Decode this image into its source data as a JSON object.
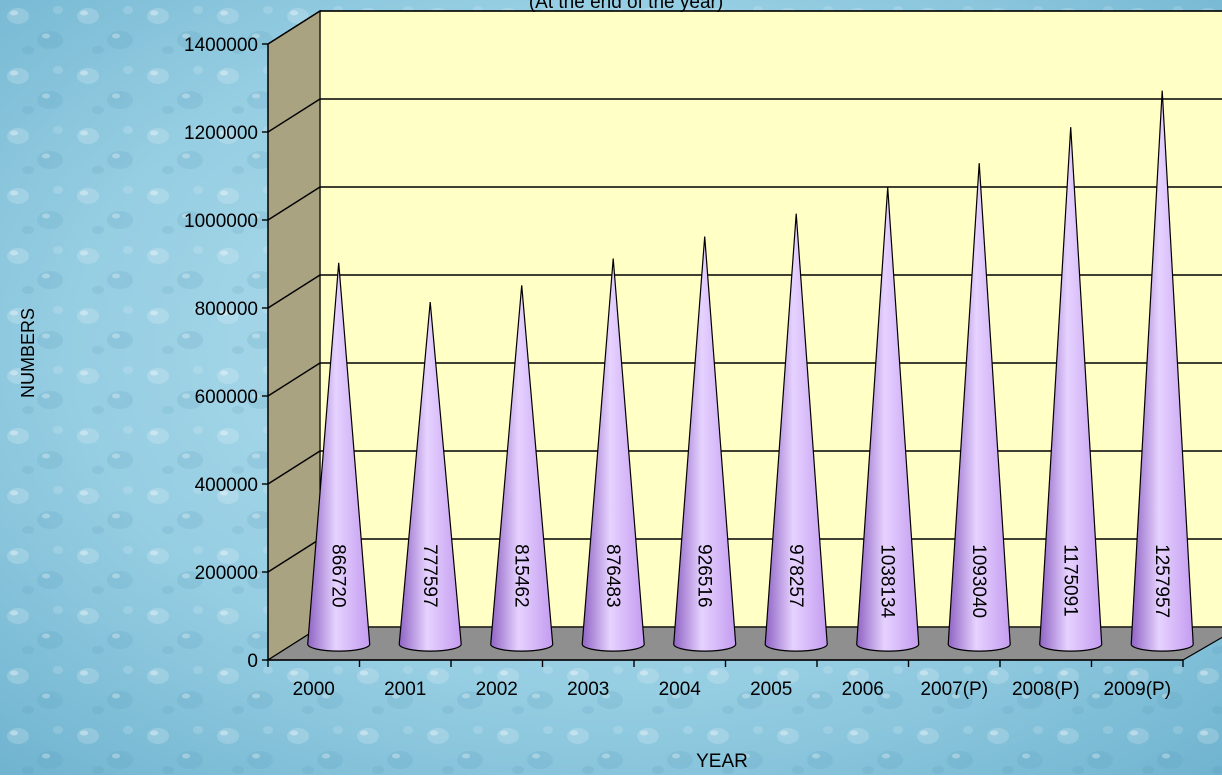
{
  "chart_data": {
    "type": "bar",
    "bar_shape": "cone",
    "title": "",
    "subtitle": "(At the end of the year)",
    "xlabel": "YEAR",
    "ylabel": "NUMBERS",
    "ylim": [
      0,
      1400000
    ],
    "yticks": [
      0,
      200000,
      400000,
      600000,
      800000,
      1000000,
      1200000,
      1400000
    ],
    "ytick_labels": [
      "0",
      "200000",
      "400000",
      "600000",
      "800000",
      "1000000",
      "1200000",
      "1400000"
    ],
    "categories": [
      "2000",
      "2001",
      "2002",
      "2003",
      "2004",
      "2005",
      "2006",
      "2007(P)",
      "2008(P)",
      "2009(P)"
    ],
    "values": [
      866720,
      777597,
      815462,
      876483,
      926516,
      978257,
      1038134,
      1093040,
      1175091,
      1257957
    ],
    "data_labels": [
      "866720",
      "777597",
      "815462",
      "876483",
      "926516",
      "978257",
      "1038134",
      "1093040",
      "1175091",
      "1257957"
    ],
    "grid": true,
    "legend": "none",
    "colors": {
      "cone": "#c49cf0",
      "cone_light": "#e6d2ff",
      "cone_dark": "#8f63c4",
      "back_wall": "#ffffc6",
      "side_wall": "#a9a382",
      "floor": "#8f8f8f",
      "background": "#8ec9e0"
    }
  }
}
